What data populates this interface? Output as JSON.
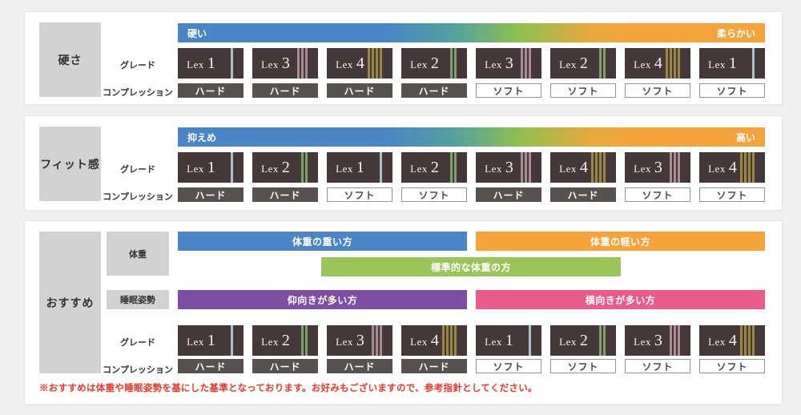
{
  "grade_word": "Lex",
  "theme": {
    "page_bg": "#f0f0f0",
    "panel_bg": "#ffffff",
    "category_box_bg": "#d2d2d2",
    "chip_bg": "#463838",
    "hard_badge_bg": "#575150",
    "soft_badge_border": "#98918f",
    "scale_gradient_left": "#4a86c6",
    "scale_gradient_right": "#f5a33c",
    "note_color": "#e8392b",
    "grade_stripe_colors": {
      "1": "#a9c3ce",
      "2": "#7e9f70",
      "3": "#aa8a94",
      "4": "#9a8743"
    },
    "bar_colors": {
      "heavy": "#4a86c6",
      "light": "#f5a33c",
      "standard": "#9bc45b",
      "back": "#7c4fa4",
      "side": "#ea5b8d"
    }
  },
  "row_labels": {
    "grade": "グレード",
    "compression": "コンプレッション"
  },
  "panels": {
    "hardness": {
      "category": "硬さ",
      "scale_left": "硬い",
      "scale_right": "柔らかい",
      "items": [
        {
          "grade": 1,
          "compression": "ハード",
          "type": "hard"
        },
        {
          "grade": 3,
          "compression": "ハード",
          "type": "hard"
        },
        {
          "grade": 4,
          "compression": "ハード",
          "type": "hard"
        },
        {
          "grade": 2,
          "compression": "ハード",
          "type": "hard"
        },
        {
          "grade": 3,
          "compression": "ソフト",
          "type": "soft"
        },
        {
          "grade": 2,
          "compression": "ソフト",
          "type": "soft"
        },
        {
          "grade": 4,
          "compression": "ソフト",
          "type": "soft"
        },
        {
          "grade": 1,
          "compression": "ソフト",
          "type": "soft"
        }
      ]
    },
    "fit": {
      "category": "フィット感",
      "scale_left": "抑えめ",
      "scale_right": "高い",
      "items": [
        {
          "grade": 1,
          "compression": "ハード",
          "type": "hard"
        },
        {
          "grade": 2,
          "compression": "ハード",
          "type": "hard"
        },
        {
          "grade": 1,
          "compression": "ソフト",
          "type": "soft"
        },
        {
          "grade": 2,
          "compression": "ソフト",
          "type": "soft"
        },
        {
          "grade": 3,
          "compression": "ハード",
          "type": "hard"
        },
        {
          "grade": 4,
          "compression": "ハード",
          "type": "hard"
        },
        {
          "grade": 3,
          "compression": "ソフト",
          "type": "soft"
        },
        {
          "grade": 4,
          "compression": "ソフト",
          "type": "soft"
        }
      ]
    },
    "recommend": {
      "category": "おすすめ",
      "weight_label": "体重",
      "posture_label": "睡眠姿勢",
      "bars": {
        "heavy": "体重の重い方",
        "light": "体重の軽い方",
        "standard": "標準的な体重の方",
        "back": "仰向きが多い方",
        "side": "横向きが多い方"
      },
      "items": [
        {
          "grade": 1,
          "compression": "ハード",
          "type": "hard"
        },
        {
          "grade": 2,
          "compression": "ハード",
          "type": "hard"
        },
        {
          "grade": 3,
          "compression": "ハード",
          "type": "hard"
        },
        {
          "grade": 4,
          "compression": "ハード",
          "type": "hard"
        },
        {
          "grade": 1,
          "compression": "ソフト",
          "type": "soft"
        },
        {
          "grade": 2,
          "compression": "ソフト",
          "type": "soft"
        },
        {
          "grade": 3,
          "compression": "ソフト",
          "type": "soft"
        },
        {
          "grade": 4,
          "compression": "ソフト",
          "type": "soft"
        }
      ]
    }
  },
  "note": "※おすすめは体重や睡眠姿勢を基にした基準となっております。お好みもございますので、参考指針としてください。"
}
